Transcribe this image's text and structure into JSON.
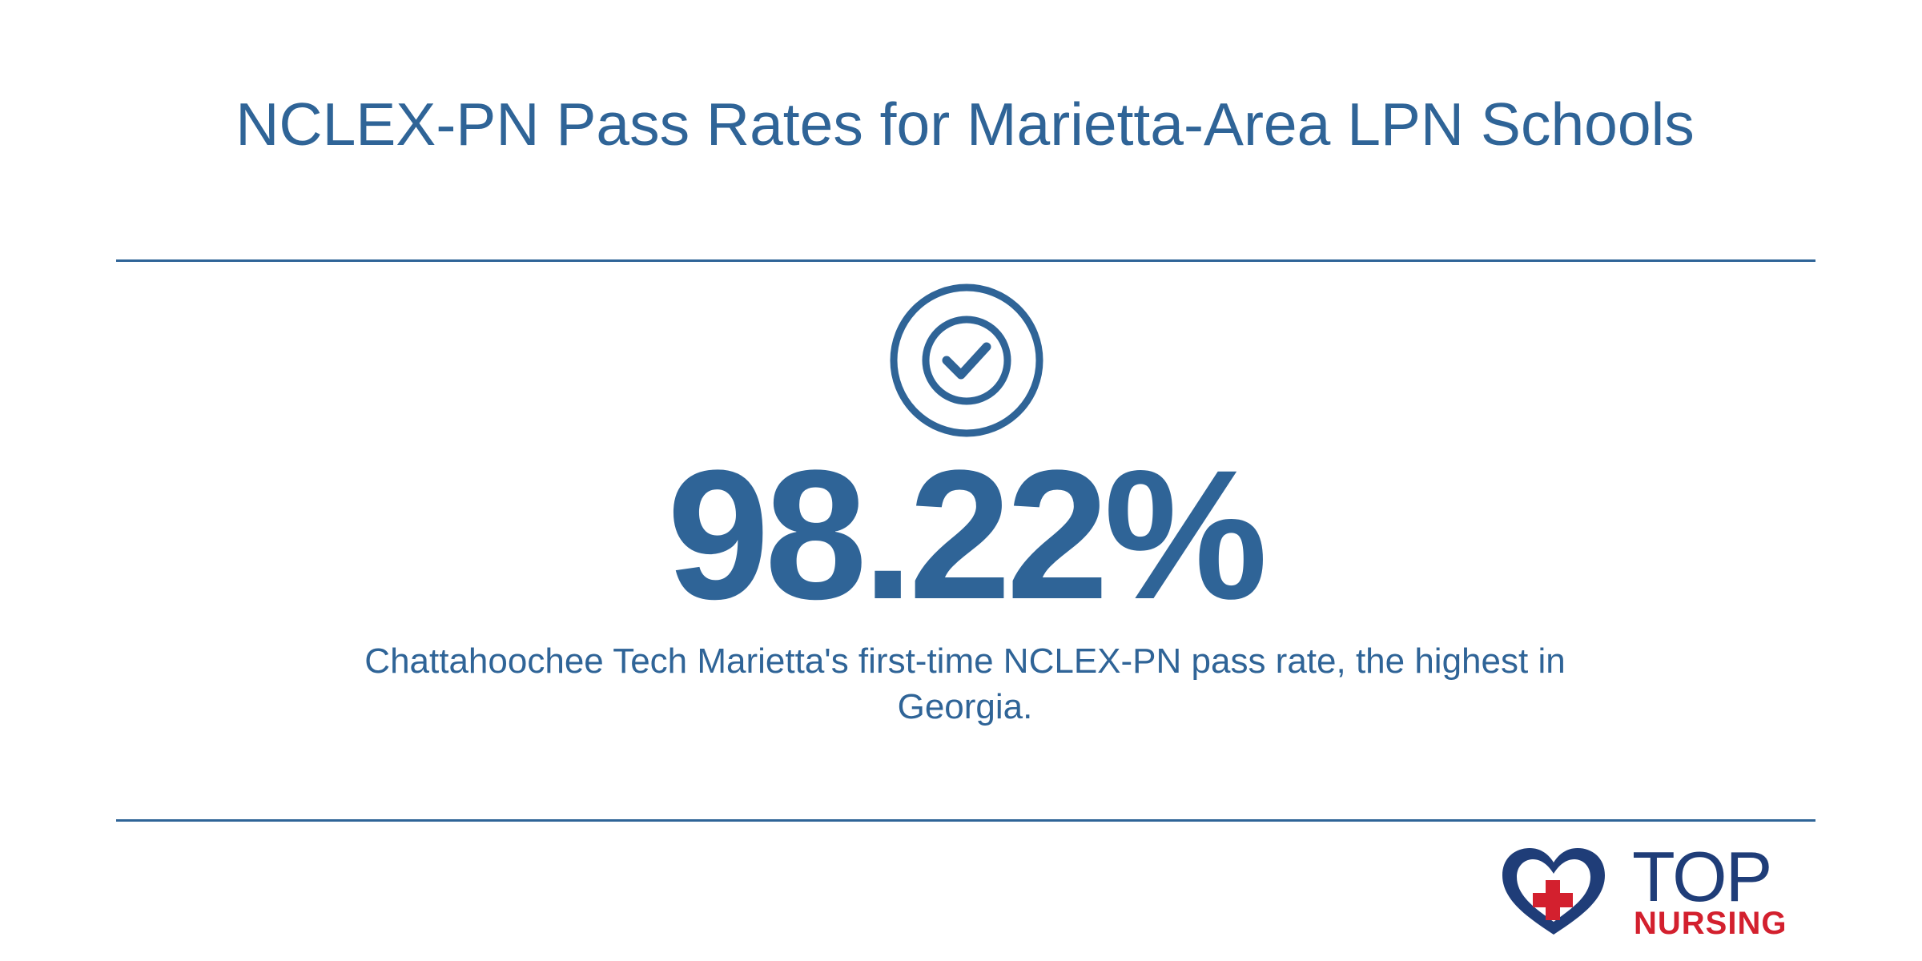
{
  "title": "NCLEX-PN Pass Rates for Marietta-Area LPN Schools",
  "stat": {
    "value": "98.22%",
    "caption": "Chattahoochee Tech Marietta's first-time NCLEX-PN pass rate, the highest in Georgia."
  },
  "icon": "check-circle-icon",
  "logo": {
    "word1": "TOP",
    "word2": "NURSING",
    "icon": "heart-cross-icon"
  },
  "colors": {
    "primary": "#2f6497",
    "logo_navy": "#1f3d78",
    "logo_red": "#d3202e",
    "background": "#ffffff"
  }
}
